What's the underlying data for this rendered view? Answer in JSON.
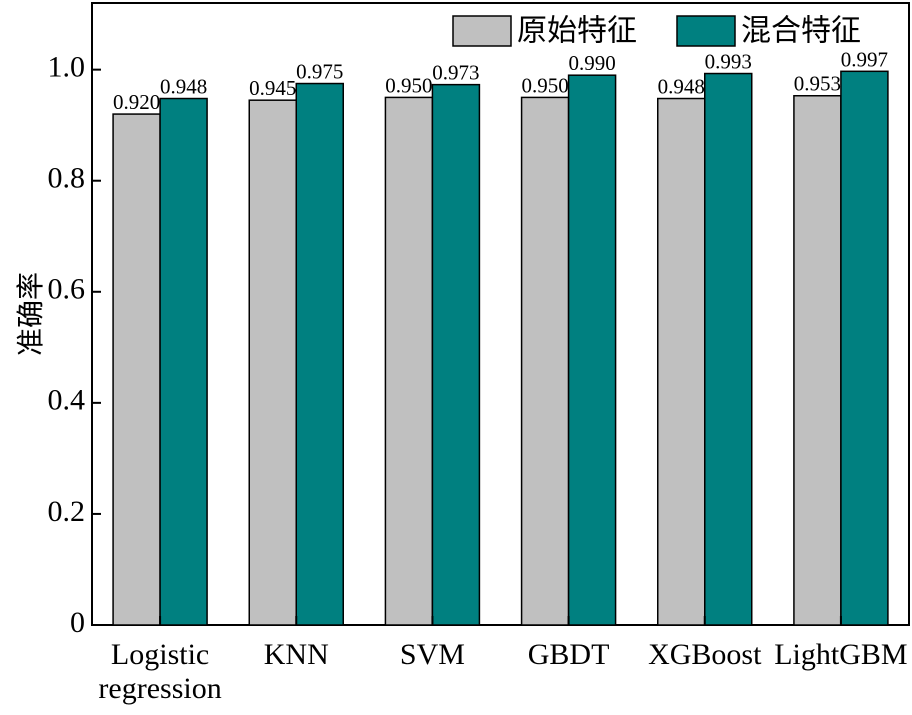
{
  "chart_data": {
    "type": "bar",
    "categories": [
      "Logistic regression",
      "KNN",
      "SVM",
      "GBDT",
      "XGBoost",
      "LightGBM"
    ],
    "category_lines": [
      [
        "Logistic",
        "regression"
      ],
      [
        "KNN"
      ],
      [
        "SVM"
      ],
      [
        "GBDT"
      ],
      [
        "XGBoost"
      ],
      [
        "LightGBM"
      ]
    ],
    "series": [
      {
        "name": "原始特征",
        "color": "#c0c0c0",
        "values": [
          0.92,
          0.945,
          0.95,
          0.95,
          0.948,
          0.953
        ],
        "labels": [
          "0.920",
          "0.945",
          "0.950",
          "0.950",
          "0.948",
          "0.953"
        ]
      },
      {
        "name": "混合特征",
        "color": "#008080",
        "values": [
          0.948,
          0.975,
          0.973,
          0.99,
          0.993,
          0.997
        ],
        "labels": [
          "0.948",
          "0.975",
          "0.973",
          "0.990",
          "0.993",
          "0.997"
        ]
      }
    ],
    "title": "",
    "xlabel": "",
    "ylabel": "准确率",
    "ylim": [
      0,
      1.12
    ],
    "yticks": [
      0,
      0.2,
      0.4,
      0.6,
      0.8,
      1.0
    ],
    "ytick_labels": [
      "0",
      "0.2",
      "0.4",
      "0.6",
      "0.8",
      "1.0"
    ],
    "grid": false,
    "legend_position": "top-right"
  }
}
